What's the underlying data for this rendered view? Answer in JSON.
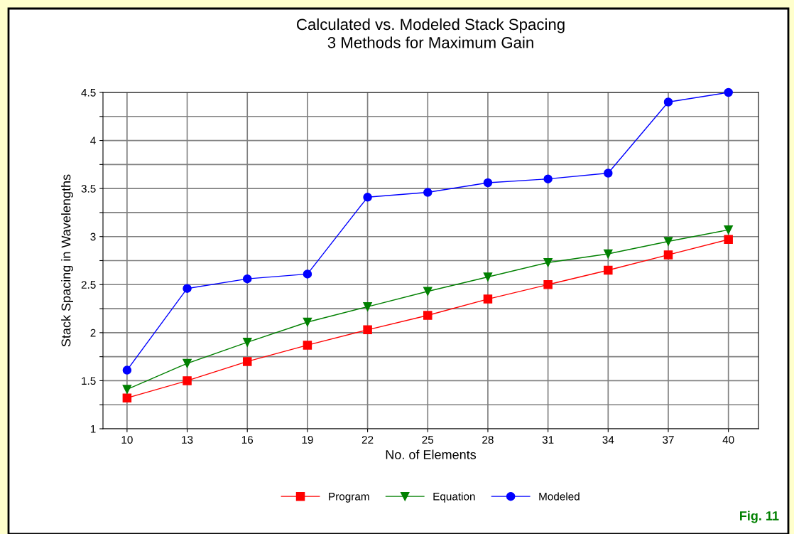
{
  "chart_data": {
    "type": "line",
    "title": "Calculated vs. Modeled Stack Spacing\n3 Methods for Maximum Gain",
    "xlabel": "No. of Elements",
    "ylabel": "Stack Spacing in Wavelengths",
    "categories": [
      "10",
      "13",
      "16",
      "19",
      "22",
      "25",
      "28",
      "31",
      "34",
      "37",
      "40"
    ],
    "series": [
      {
        "name": "Program",
        "color": "#ff0000",
        "marker": "square",
        "values": [
          1.32,
          1.5,
          1.7,
          1.87,
          2.03,
          2.18,
          2.35,
          2.5,
          2.65,
          2.81,
          2.97
        ]
      },
      {
        "name": "Equation",
        "color": "#008000",
        "marker": "triangle",
        "values": [
          1.41,
          1.68,
          1.9,
          2.11,
          2.27,
          2.43,
          2.58,
          2.73,
          2.82,
          2.95,
          3.07
        ]
      },
      {
        "name": "Modeled",
        "color": "#0000ff",
        "marker": "circle",
        "values": [
          1.61,
          2.46,
          2.56,
          2.61,
          3.41,
          3.46,
          3.56,
          3.6,
          3.66,
          4.4,
          4.5
        ]
      }
    ],
    "ylim": [
      1,
      4.5
    ],
    "yticks": [
      1,
      {
        "value": 1.25,
        "label": null
      },
      1.5,
      {
        "value": 1.75,
        "label": null
      },
      2,
      {
        "value": 2.25,
        "label": null
      },
      2.5,
      {
        "value": 2.75,
        "label": null
      },
      3,
      {
        "value": 3.25,
        "label": null
      },
      3.5,
      {
        "value": 3.75,
        "label": null
      },
      4,
      {
        "value": 4.25,
        "label": null
      },
      4.5
    ],
    "grid": true,
    "legend": "bottom",
    "line_style": "solid",
    "annotations": [
      "Fig. 11"
    ]
  }
}
